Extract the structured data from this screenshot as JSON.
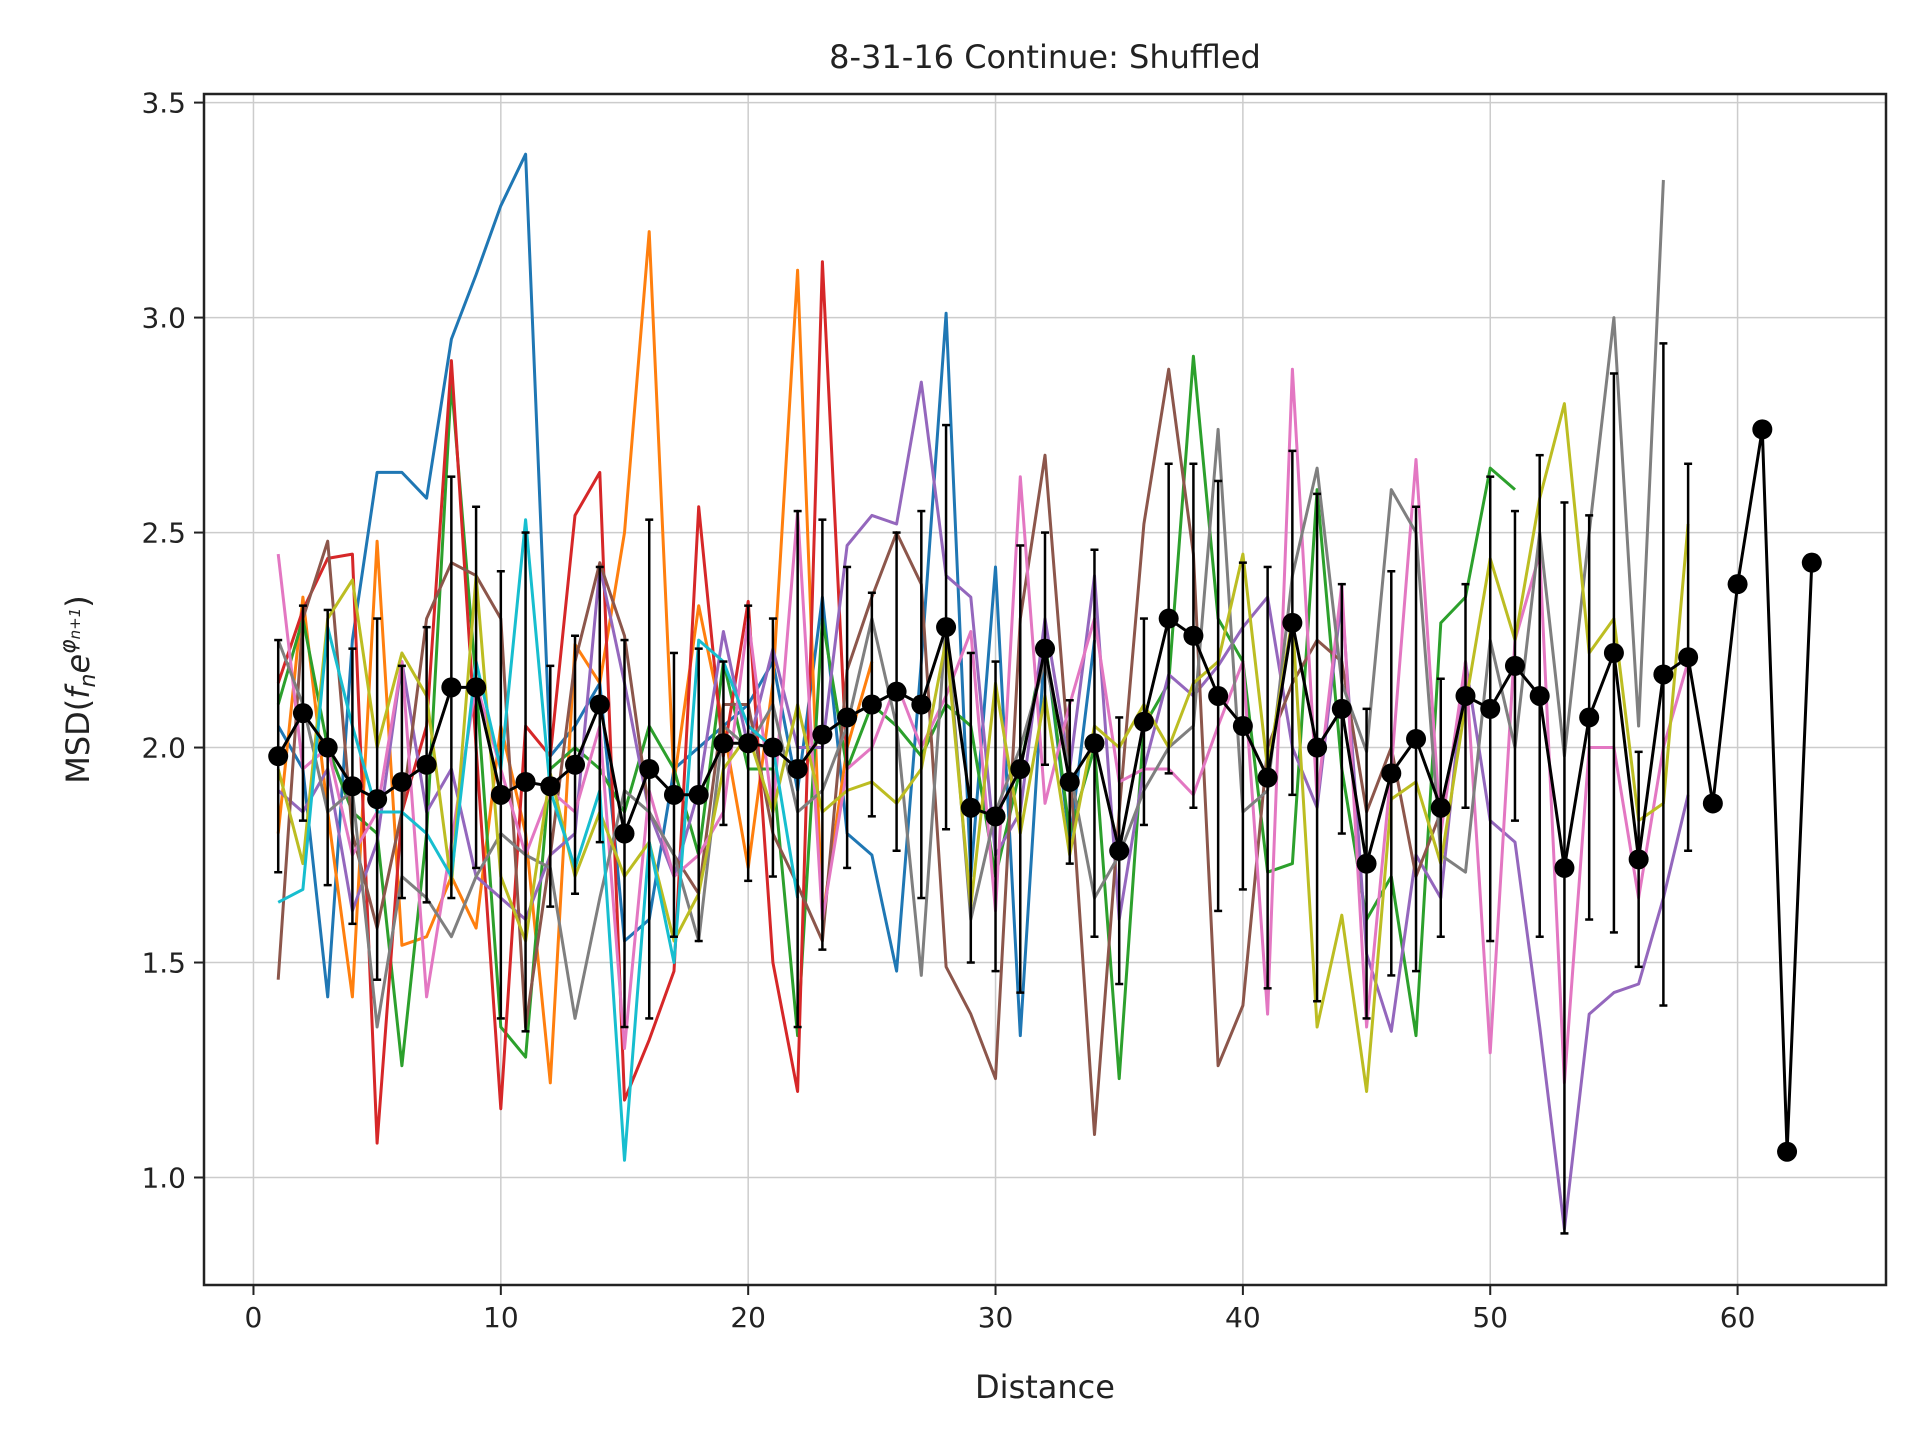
{
  "chart_data": {
    "type": "line",
    "title": "8-31-16 Continue: Shuffled",
    "xlabel": "Distance",
    "ylabel": "MSD(f_n e^{φ_{n+1}})",
    "ylabel_parts": {
      "prefix": "MSD(",
      "f": "f",
      "n": "n",
      "e": "e",
      "phi": "φ",
      "sub": "n+1",
      "suffix": ")"
    },
    "xlim": [
      -2,
      66
    ],
    "ylim": [
      0.75,
      3.52
    ],
    "xticks": [
      0,
      10,
      20,
      30,
      40,
      50,
      60
    ],
    "yticks": [
      1.0,
      1.5,
      2.0,
      2.5,
      3.0,
      3.5
    ],
    "xtick_labels": [
      "0",
      "10",
      "20",
      "30",
      "40",
      "50",
      "60"
    ],
    "ytick_labels": [
      "1.0",
      "1.5",
      "2.0",
      "2.5",
      "3.0",
      "3.5"
    ],
    "grid": true,
    "legend": false,
    "series": [
      {
        "color": "#1f77b4",
        "x": [
          1,
          2,
          3,
          4,
          5,
          6,
          7,
          8,
          9,
          10,
          11,
          12,
          13,
          14,
          15,
          16,
          17,
          18,
          19,
          20,
          21,
          22,
          23,
          24,
          25,
          26,
          27,
          28,
          29,
          30,
          31,
          32,
          33,
          34
        ],
        "y": [
          2.05,
          1.95,
          1.42,
          2.25,
          2.64,
          2.64,
          2.58,
          2.95,
          3.1,
          3.26,
          3.38,
          1.98,
          2.05,
          2.15,
          1.55,
          1.6,
          1.95,
          2.0,
          2.05,
          2.1,
          2.2,
          1.9,
          2.35,
          1.8,
          1.75,
          1.48,
          2.2,
          3.01,
          1.7,
          2.42,
          1.33,
          2.25,
          1.78,
          2.25
        ]
      },
      {
        "color": "#ff7f0e",
        "x": [
          1,
          2,
          3,
          4,
          5,
          6,
          7,
          8,
          9,
          10,
          11,
          12,
          13,
          14,
          15,
          16,
          17,
          18,
          19,
          20,
          21,
          22,
          23,
          24,
          25
        ],
        "y": [
          1.8,
          2.35,
          1.85,
          1.42,
          2.48,
          1.54,
          1.56,
          1.7,
          1.58,
          2.05,
          1.8,
          1.22,
          2.24,
          2.15,
          2.5,
          3.2,
          1.92,
          2.33,
          2.05,
          1.72,
          2.15,
          3.11,
          1.6,
          2.0,
          2.2
        ]
      },
      {
        "color": "#2ca02c",
        "x": [
          1,
          2,
          3,
          4,
          5,
          6,
          7,
          8,
          9,
          10,
          11,
          12,
          13,
          14,
          15,
          16,
          17,
          18,
          19,
          20,
          21,
          22,
          23,
          24,
          25,
          26,
          27,
          28,
          29,
          30,
          31,
          32,
          33,
          34,
          35,
          36,
          37,
          38,
          39,
          40,
          41,
          42,
          43,
          44,
          45,
          46,
          47,
          48,
          49,
          50,
          51
        ],
        "y": [
          2.1,
          2.3,
          2.0,
          1.85,
          1.8,
          1.26,
          1.8,
          2.85,
          2.15,
          1.35,
          1.28,
          1.95,
          2.0,
          1.95,
          1.85,
          2.05,
          1.95,
          1.75,
          2.2,
          1.95,
          1.95,
          1.33,
          2.3,
          1.95,
          2.1,
          2.05,
          1.98,
          2.1,
          2.05,
          1.7,
          1.95,
          2.25,
          1.8,
          2.0,
          1.23,
          2.05,
          2.15,
          2.91,
          2.3,
          2.2,
          1.71,
          1.73,
          2.6,
          1.95,
          1.6,
          1.7,
          1.33,
          2.29,
          2.35,
          2.65,
          2.6
        ]
      },
      {
        "color": "#d62728",
        "x": [
          1,
          2,
          3,
          4,
          5,
          6,
          7,
          8,
          9,
          10,
          11,
          12,
          13,
          14,
          15,
          16,
          17,
          18,
          19,
          20,
          21,
          22,
          23,
          24
        ],
        "y": [
          2.15,
          2.32,
          2.44,
          2.45,
          1.08,
          1.85,
          2.05,
          2.9,
          2.0,
          1.16,
          2.05,
          1.98,
          2.54,
          2.64,
          1.18,
          1.32,
          1.48,
          2.56,
          1.98,
          2.34,
          1.5,
          1.2,
          3.13,
          1.95
        ]
      },
      {
        "color": "#9467bd",
        "x": [
          1,
          2,
          3,
          4,
          5,
          6,
          7,
          8,
          9,
          10,
          11,
          12,
          13,
          14,
          15,
          16,
          17,
          18,
          19,
          20,
          21,
          22,
          23,
          24,
          25,
          26,
          27,
          28,
          29,
          30,
          31,
          32,
          33,
          34,
          35,
          36,
          37,
          38,
          39,
          40,
          41,
          42,
          43,
          44,
          45,
          46,
          47,
          48,
          49,
          50,
          51,
          52,
          53,
          54,
          55,
          56,
          57,
          58
        ],
        "y": [
          1.9,
          1.85,
          1.95,
          1.62,
          1.78,
          2.2,
          1.85,
          1.95,
          1.7,
          1.65,
          1.6,
          1.75,
          1.8,
          2.42,
          2.15,
          1.85,
          1.7,
          1.9,
          2.27,
          2.0,
          2.23,
          2.0,
          2.0,
          2.47,
          2.54,
          2.52,
          2.85,
          2.4,
          2.35,
          1.75,
          1.85,
          2.3,
          1.95,
          2.4,
          1.6,
          1.95,
          2.17,
          2.12,
          2.19,
          2.28,
          2.35,
          2.0,
          1.86,
          2.35,
          1.52,
          1.34,
          1.75,
          1.65,
          2.2,
          1.83,
          1.78,
          1.35,
          0.88,
          1.38,
          1.43,
          1.45,
          1.65,
          1.89
        ]
      },
      {
        "color": "#8c564b",
        "x": [
          1,
          2,
          3,
          4,
          5,
          6,
          7,
          8,
          9,
          10,
          11,
          12,
          13,
          14,
          15,
          16,
          17,
          18,
          19,
          20,
          21,
          22,
          23,
          24,
          25,
          26,
          27,
          28,
          29,
          30,
          31,
          32,
          33,
          34,
          35,
          36,
          37,
          38,
          39,
          40,
          41,
          42,
          43,
          44,
          45,
          46,
          47,
          48
        ],
        "y": [
          1.46,
          2.3,
          2.48,
          1.8,
          1.58,
          1.85,
          2.3,
          2.43,
          2.4,
          2.3,
          1.35,
          1.75,
          2.2,
          2.43,
          2.26,
          1.85,
          1.75,
          1.66,
          2.1,
          2.1,
          1.8,
          1.68,
          1.55,
          2.18,
          2.35,
          2.5,
          2.38,
          1.49,
          1.38,
          1.23,
          2.3,
          2.68,
          1.96,
          1.1,
          1.85,
          2.52,
          2.88,
          2.45,
          1.26,
          1.4,
          2.0,
          2.15,
          2.25,
          2.2,
          1.85,
          2.0,
          1.7,
          1.85
        ]
      },
      {
        "color": "#e377c2",
        "x": [
          1,
          2,
          3,
          4,
          5,
          6,
          7,
          8,
          9,
          10,
          11,
          12,
          13,
          14,
          15,
          16,
          17,
          18,
          19,
          20,
          21,
          22,
          23,
          24,
          25,
          26,
          27,
          28,
          29,
          30,
          31,
          32,
          33,
          34,
          35,
          36,
          37,
          38,
          39,
          40,
          41,
          42,
          43,
          44,
          45,
          46,
          47,
          48,
          49,
          50,
          51,
          52,
          53,
          54,
          55,
          56,
          57,
          58
        ],
        "y": [
          2.45,
          1.95,
          2.0,
          1.75,
          1.85,
          2.2,
          1.42,
          1.78,
          2.15,
          1.95,
          1.75,
          1.9,
          1.85,
          2.05,
          1.3,
          1.9,
          1.7,
          1.75,
          1.85,
          2.3,
          1.85,
          2.55,
          1.6,
          1.95,
          2.0,
          2.15,
          2.0,
          2.12,
          2.27,
          1.62,
          2.63,
          1.87,
          2.1,
          2.3,
          1.92,
          1.95,
          1.95,
          1.89,
          2.05,
          2.2,
          1.38,
          2.88,
          1.88,
          2.38,
          1.35,
          1.95,
          2.67,
          1.8,
          2.2,
          1.29,
          2.25,
          2.45,
          1.22,
          2.0,
          2.0,
          1.65,
          2.0,
          2.2
        ]
      },
      {
        "color": "#7f7f7f",
        "x": [
          1,
          2,
          3,
          4,
          5,
          6,
          7,
          8,
          9,
          10,
          11,
          12,
          13,
          14,
          15,
          16,
          17,
          18,
          19,
          20,
          21,
          22,
          23,
          24,
          25,
          26,
          27,
          28,
          29,
          30,
          31,
          32,
          33,
          34,
          35,
          36,
          37,
          38,
          39,
          40,
          41,
          42,
          43,
          44,
          45,
          46,
          47,
          48,
          49,
          50,
          51,
          52,
          53,
          54,
          55,
          56,
          57
        ],
        "y": [
          2.25,
          2.1,
          1.85,
          1.9,
          1.35,
          1.7,
          1.65,
          1.56,
          1.7,
          1.8,
          1.75,
          1.72,
          1.37,
          1.65,
          1.9,
          1.85,
          1.75,
          1.55,
          2.05,
          2.0,
          2.1,
          1.85,
          1.9,
          2.05,
          2.3,
          2.05,
          1.47,
          2.3,
          1.6,
          1.85,
          2.0,
          2.2,
          1.95,
          1.65,
          1.75,
          1.9,
          2.0,
          2.05,
          2.74,
          1.85,
          1.9,
          2.4,
          2.65,
          2.15,
          1.99,
          2.6,
          2.5,
          1.75,
          1.71,
          2.25,
          2.0,
          2.5,
          1.98,
          2.5,
          3.0,
          2.05,
          3.32
        ]
      },
      {
        "color": "#bcbd22",
        "x": [
          1,
          2,
          3,
          4,
          5,
          6,
          7,
          8,
          9,
          10,
          11,
          12,
          13,
          14,
          15,
          16,
          17,
          18,
          19,
          20,
          21,
          22,
          23,
          24,
          25,
          26,
          27,
          28,
          29,
          30,
          31,
          32,
          33,
          34,
          35,
          36,
          37,
          38,
          39,
          40,
          41,
          42,
          43,
          44,
          45,
          46,
          47,
          48,
          49,
          50,
          51,
          52,
          53,
          54,
          55,
          56,
          57,
          58
        ],
        "y": [
          1.95,
          1.73,
          2.3,
          2.39,
          2.0,
          2.22,
          2.12,
          1.68,
          2.4,
          1.7,
          1.55,
          1.94,
          1.7,
          1.85,
          1.7,
          1.78,
          1.55,
          1.66,
          1.95,
          2.03,
          1.85,
          2.1,
          1.85,
          1.9,
          1.92,
          1.87,
          1.95,
          2.25,
          1.63,
          2.15,
          1.8,
          2.12,
          1.75,
          2.05,
          2.0,
          2.1,
          2.0,
          2.15,
          2.2,
          2.45,
          1.95,
          2.3,
          1.35,
          1.61,
          1.2,
          1.88,
          1.92,
          1.73,
          2.1,
          2.44,
          2.25,
          2.58,
          2.8,
          2.22,
          2.3,
          1.83,
          1.87,
          2.52
        ]
      },
      {
        "color": "#17becf",
        "x": [
          1,
          2,
          3,
          4,
          5,
          6,
          7,
          8,
          9,
          10,
          11,
          12,
          13,
          14,
          15,
          16,
          17,
          18,
          19,
          20,
          21,
          22
        ],
        "y": [
          1.64,
          1.67,
          2.28,
          2.05,
          1.85,
          1.85,
          1.8,
          1.7,
          2.2,
          1.95,
          2.53,
          1.9,
          1.72,
          1.9,
          1.04,
          1.78,
          1.5,
          2.25,
          2.2,
          2.05,
          2.0,
          1.65
        ]
      }
    ],
    "mean_series": {
      "color": "#000000",
      "x": [
        1,
        2,
        3,
        4,
        5,
        6,
        7,
        8,
        9,
        10,
        11,
        12,
        13,
        14,
        15,
        16,
        17,
        18,
        19,
        20,
        21,
        22,
        23,
        24,
        25,
        26,
        27,
        28,
        29,
        30,
        31,
        32,
        33,
        34,
        35,
        36,
        37,
        38,
        39,
        40,
        41,
        42,
        43,
        44,
        45,
        46,
        47,
        48,
        49,
        50,
        51,
        52,
        53,
        54,
        55,
        56,
        57,
        58,
        59,
        60,
        61,
        62,
        63
      ],
      "y": [
        1.98,
        2.08,
        2.0,
        1.91,
        1.88,
        1.92,
        1.96,
        2.14,
        2.14,
        1.89,
        1.92,
        1.91,
        1.96,
        2.1,
        1.8,
        1.95,
        1.89,
        1.89,
        2.01,
        2.01,
        2.0,
        1.95,
        2.03,
        2.07,
        2.1,
        2.13,
        2.1,
        2.28,
        1.86,
        1.84,
        1.95,
        2.23,
        1.92,
        2.01,
        1.76,
        2.06,
        2.3,
        2.26,
        2.12,
        2.05,
        1.93,
        2.29,
        2.0,
        2.09,
        1.73,
        1.94,
        2.02,
        1.86,
        2.12,
        2.09,
        2.19,
        2.12,
        1.72,
        2.07,
        2.22,
        1.74,
        2.17,
        2.21,
        1.87,
        2.38,
        2.74,
        1.06,
        2.43
      ],
      "yerr": [
        0.27,
        0.25,
        0.32,
        0.32,
        0.42,
        0.27,
        0.32,
        0.49,
        0.42,
        0.52,
        0.58,
        0.28,
        0.3,
        0.32,
        0.45,
        0.58,
        0.33,
        0.34,
        0.19,
        0.32,
        0.3,
        0.6,
        0.5,
        0.35,
        0.26,
        0.37,
        0.45,
        0.47,
        0.36,
        0.36,
        0.52,
        0.27,
        0.19,
        0.45,
        0.31,
        0.24,
        0.36,
        0.4,
        0.5,
        0.38,
        0.49,
        0.4,
        0.59,
        0.29,
        0.36,
        0.47,
        0.54,
        0.3,
        0.26,
        0.54,
        0.36,
        0.56,
        0.85,
        0.47,
        0.65,
        0.25,
        0.77,
        0.45,
        0,
        0,
        0,
        0,
        0
      ]
    }
  }
}
